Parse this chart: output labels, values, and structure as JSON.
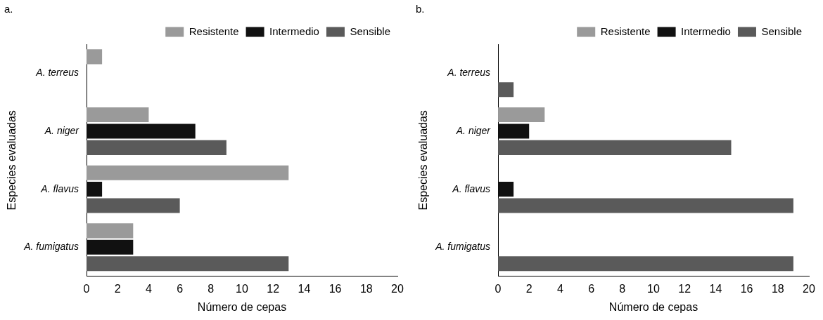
{
  "chart_data": [
    {
      "type": "bar",
      "orientation": "horizontal",
      "annotations": [
        "a."
      ],
      "xlabel": "Número de cepas",
      "ylabel": "Especies evaluadas",
      "categories": [
        "A. terreus",
        "A. niger",
        "A. flavus",
        "A. fumigatus"
      ],
      "series": [
        {
          "name": "Resistente",
          "color": "#9a9a9a",
          "values": [
            1,
            4,
            13,
            3
          ]
        },
        {
          "name": "Intermedio",
          "color": "#111111",
          "values": [
            0,
            7,
            1,
            3
          ]
        },
        {
          "name": "Sensible",
          "color": "#5a5a5a",
          "values": [
            0,
            9,
            6,
            13
          ]
        }
      ],
      "xlim": [
        0,
        20
      ],
      "xticks": [
        0,
        2,
        4,
        6,
        8,
        10,
        12,
        14,
        16,
        18,
        20
      ],
      "grid": false,
      "legend": "top right"
    },
    {
      "type": "bar",
      "orientation": "horizontal",
      "annotations": [
        "b."
      ],
      "xlabel": "Número de cepas",
      "ylabel": "Especies evaluadas",
      "categories": [
        "A. terreus",
        "A. niger",
        "A. flavus",
        "A. fumigatus"
      ],
      "series": [
        {
          "name": "Resistente",
          "color": "#9a9a9a",
          "values": [
            0,
            3,
            0,
            0
          ]
        },
        {
          "name": "Intermedio",
          "color": "#111111",
          "values": [
            0,
            2,
            1,
            0
          ]
        },
        {
          "name": "Sensible",
          "color": "#5a5a5a",
          "values": [
            1,
            15,
            19,
            19
          ]
        }
      ],
      "xlim": [
        0,
        20
      ],
      "xticks": [
        0,
        2,
        4,
        6,
        8,
        10,
        12,
        14,
        16,
        18,
        20
      ],
      "grid": false,
      "legend": "top right"
    }
  ]
}
